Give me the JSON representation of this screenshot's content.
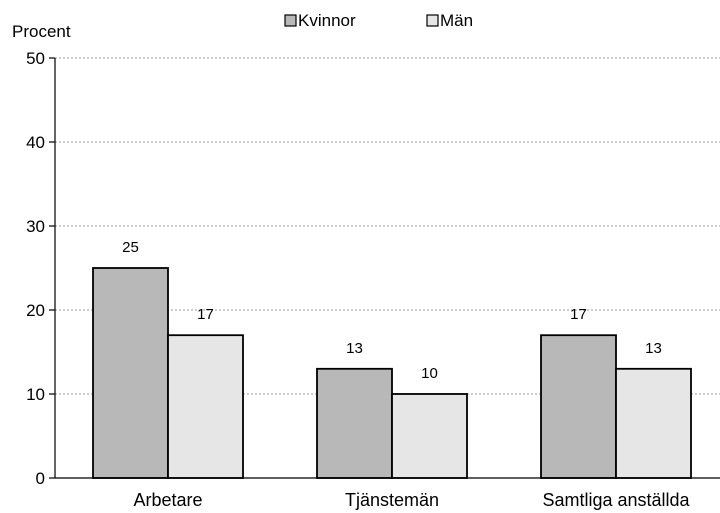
{
  "chart_data": {
    "type": "bar",
    "title": "",
    "xlabel": "",
    "ylabel": "Procent",
    "ylim": [
      0,
      50
    ],
    "yticks": [
      0,
      10,
      20,
      30,
      40,
      50
    ],
    "grid": true,
    "legend_position": "top",
    "categories": [
      "Arbetare",
      "Tjänstemän",
      "Samtliga anställda"
    ],
    "series": [
      {
        "name": "Kvinnor",
        "values": [
          25,
          13,
          17
        ],
        "labels": [
          "25",
          "13",
          "17"
        ],
        "color": "#b8b8b8"
      },
      {
        "name": "Män",
        "values": [
          17,
          10,
          13
        ],
        "labels": [
          "17",
          "10",
          "13"
        ],
        "color": "#e6e6e6"
      }
    ]
  }
}
